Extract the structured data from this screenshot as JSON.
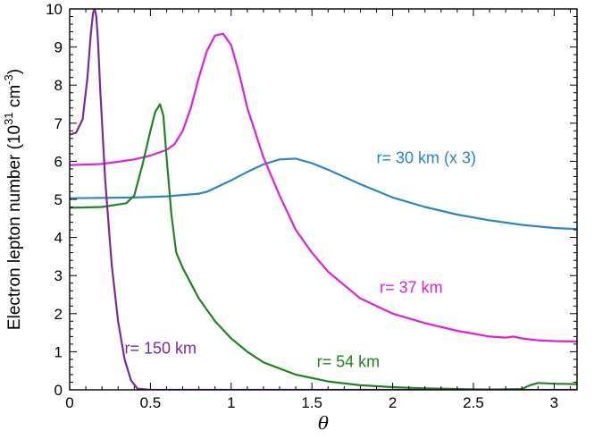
{
  "chart_data": {
    "type": "line",
    "xlabel": "θ",
    "ylabel_main": "Electron lepton number (10",
    "ylabel_exp1": "31",
    "ylabel_mid": " cm",
    "ylabel_exp2": "-3",
    "ylabel_end": ")",
    "xlim": [
      0,
      3.14159
    ],
    "ylim": [
      0,
      10
    ],
    "xticks": [
      0,
      0.5,
      1,
      1.5,
      2,
      2.5,
      3
    ],
    "xtick_labels": [
      "0",
      "0.5",
      "1",
      "1.5",
      "2",
      "2.5",
      "3"
    ],
    "yticks": [
      0,
      1,
      2,
      3,
      4,
      5,
      6,
      7,
      8,
      9,
      10
    ],
    "ytick_labels": [
      "0",
      "1",
      "2",
      "3",
      "4",
      "5",
      "6",
      "7",
      "8",
      "9",
      "10"
    ],
    "grid": false,
    "series": [
      {
        "color": "#2a86c8",
        "x": [
          0,
          0.2,
          0.4,
          0.6,
          0.8,
          0.85,
          0.9,
          1.0,
          1.1,
          1.2,
          1.3,
          1.4,
          1.5,
          1.6,
          1.8,
          2.0,
          2.2,
          2.4,
          2.6,
          2.8,
          3.0,
          3.1416
        ],
        "y": [
          5.03,
          5.04,
          5.05,
          5.08,
          5.15,
          5.2,
          5.3,
          5.5,
          5.72,
          5.92,
          6.05,
          6.07,
          5.95,
          5.78,
          5.4,
          5.05,
          4.8,
          4.6,
          4.45,
          4.33,
          4.25,
          4.22
        ]
      },
      {
        "color": "#e21de2",
        "x": [
          0,
          0.2,
          0.4,
          0.5,
          0.6,
          0.65,
          0.7,
          0.75,
          0.8,
          0.85,
          0.9,
          0.95,
          1.0,
          1.05,
          1.1,
          1.2,
          1.3,
          1.4,
          1.5,
          1.6,
          1.8,
          2.0,
          2.2,
          2.4,
          2.6,
          2.7,
          2.75,
          2.8,
          2.9,
          3.0,
          3.1416
        ],
        "y": [
          5.9,
          5.93,
          6.05,
          6.15,
          6.3,
          6.45,
          6.8,
          7.4,
          8.2,
          8.9,
          9.3,
          9.35,
          9.05,
          8.3,
          7.4,
          6.1,
          5.1,
          4.2,
          3.6,
          3.1,
          2.4,
          2.0,
          1.75,
          1.55,
          1.4,
          1.37,
          1.4,
          1.35,
          1.3,
          1.28,
          1.27
        ]
      },
      {
        "color": "#1f861f",
        "x": [
          0,
          0.2,
          0.35,
          0.4,
          0.45,
          0.5,
          0.53,
          0.56,
          0.58,
          0.6,
          0.63,
          0.66,
          0.7,
          0.8,
          0.9,
          1.0,
          1.1,
          1.2,
          1.4,
          1.6,
          1.8,
          2.0,
          2.2,
          2.4,
          2.6,
          2.8,
          2.85,
          2.9,
          3.0,
          3.1416
        ],
        "y": [
          4.78,
          4.8,
          4.9,
          5.1,
          5.9,
          6.8,
          7.3,
          7.5,
          7.2,
          6.1,
          4.6,
          3.6,
          3.2,
          2.4,
          1.8,
          1.35,
          1.0,
          0.72,
          0.4,
          0.22,
          0.12,
          0.07,
          0.04,
          0.02,
          0.01,
          0.02,
          0.12,
          0.18,
          0.16,
          0.15
        ]
      },
      {
        "color": "#7a2a9e",
        "x": [
          0,
          0.04,
          0.08,
          0.11,
          0.13,
          0.145,
          0.155,
          0.165,
          0.175,
          0.19,
          0.22,
          0.26,
          0.3,
          0.34,
          0.38,
          0.42,
          0.5,
          1.0,
          2.0,
          3.1416
        ],
        "y": [
          6.7,
          6.75,
          7.1,
          8.2,
          9.3,
          9.9,
          10.0,
          9.8,
          9.2,
          7.8,
          5.5,
          3.3,
          1.8,
          0.8,
          0.25,
          0.03,
          0.0,
          0.0,
          0.0,
          0.0
        ]
      }
    ],
    "annotations": [
      {
        "text": "r= 30 km (x 3)",
        "color": "#2a86c8",
        "x": 1.9,
        "y": 5.95
      },
      {
        "text": "r= 37 km",
        "color": "#e21de2",
        "x": 1.92,
        "y": 2.55
      },
      {
        "text": "r= 54 km",
        "color": "#1f861f",
        "x": 1.53,
        "y": 0.6
      },
      {
        "text": "r= 150 km",
        "color": "#7a2a9e",
        "x": 0.34,
        "y": 0.95
      }
    ]
  }
}
